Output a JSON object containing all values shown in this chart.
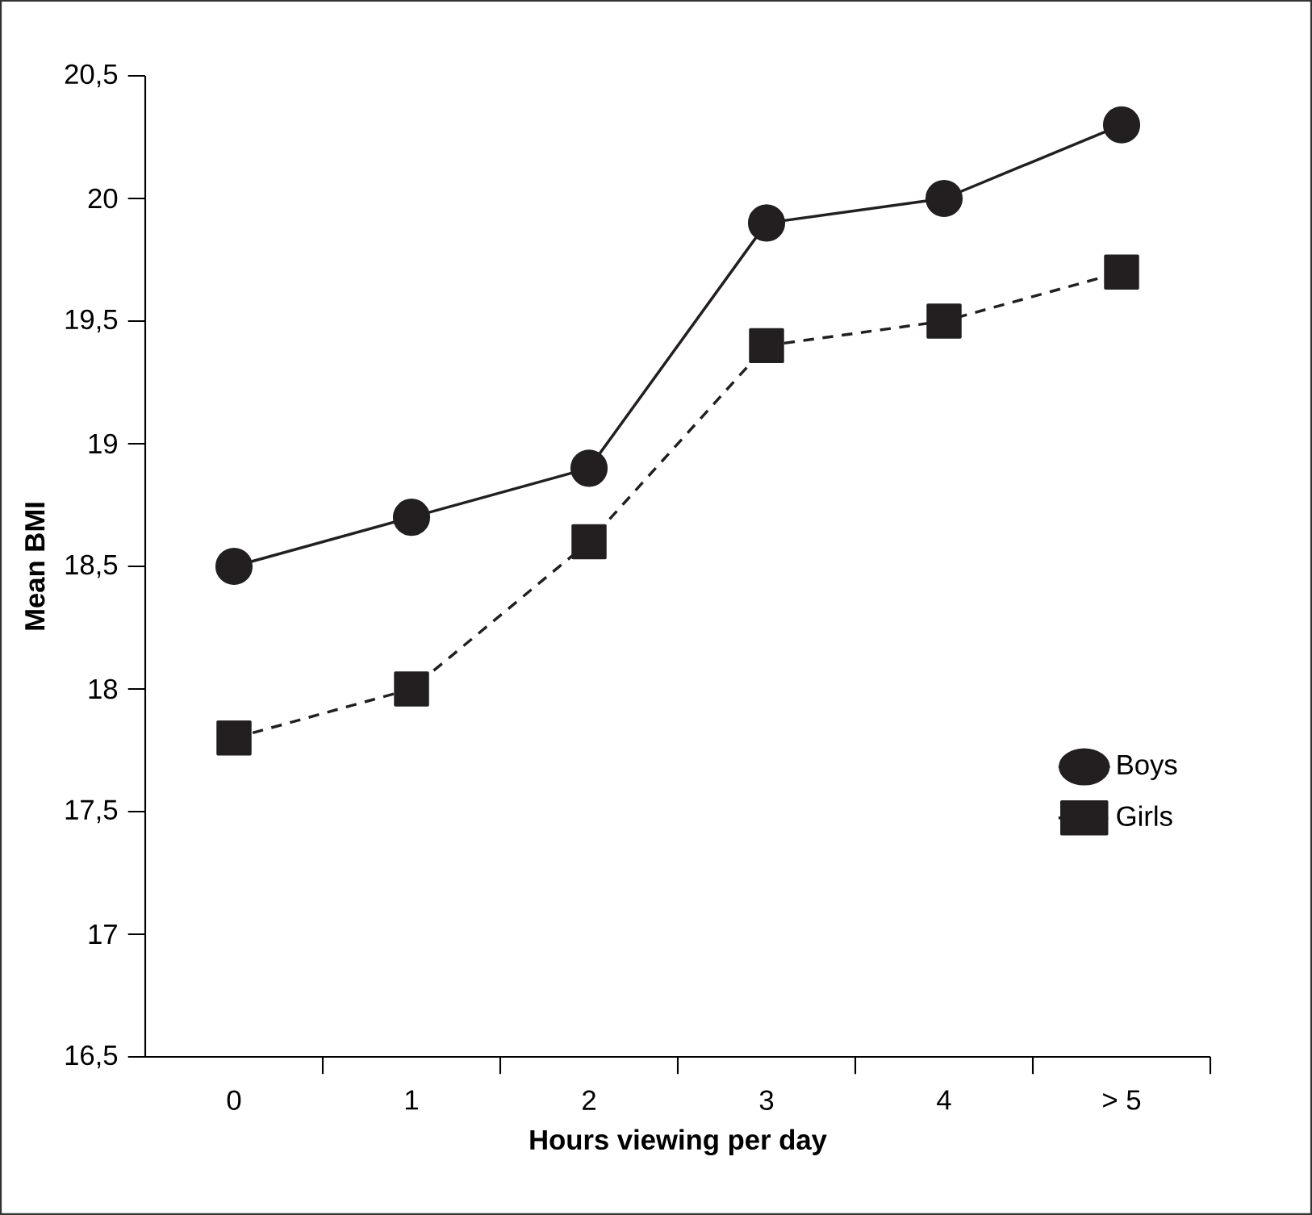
{
  "chart_data": {
    "type": "line",
    "xlabel": "Hours viewing per day",
    "ylabel": "Mean BMI",
    "categories": [
      "0",
      "1",
      "2",
      "3",
      "4",
      "> 5"
    ],
    "series": [
      {
        "name": "Boys",
        "color": "#231f20",
        "marker": "circle",
        "line_style": "solid",
        "values": [
          18.5,
          18.7,
          18.9,
          19.9,
          20.0,
          20.3
        ]
      },
      {
        "name": "Girls",
        "color": "#231f20",
        "marker": "square",
        "line_style": "dashed",
        "values": [
          17.8,
          18.0,
          18.6,
          19.4,
          19.5,
          19.7
        ]
      }
    ],
    "ylim": [
      16.5,
      20.5
    ],
    "yticks": [
      {
        "value": 16.5,
        "label": "16,5"
      },
      17,
      {
        "value": 17.5,
        "label": "17,5"
      },
      18,
      {
        "value": 18.5,
        "label": "18,5"
      },
      19,
      {
        "value": 19.5,
        "label": "19,5"
      },
      20,
      {
        "value": 20.5,
        "label": "20,5"
      }
    ],
    "grid": false,
    "legend": "right"
  }
}
